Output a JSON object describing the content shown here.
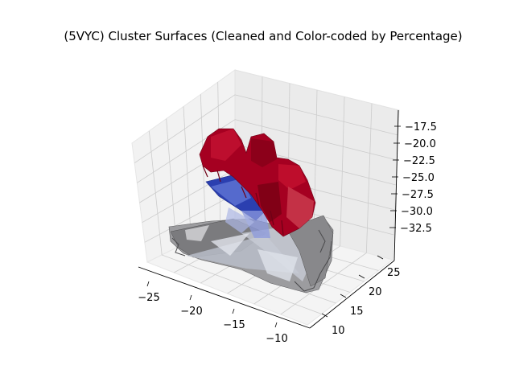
{
  "chart_data": {
    "type": "surface3d",
    "title": "(5VYC) Cluster Surfaces (Cleaned and Color-coded by Percentage)",
    "xlabel": "",
    "ylabel": "",
    "zlabel": "",
    "x_ticks": [
      "−25",
      "−20",
      "−15",
      "−10"
    ],
    "y_ticks": [
      "10",
      "15",
      "20",
      "25"
    ],
    "z_ticks": [
      "−17.5",
      "−20.0",
      "−22.5",
      "−25.0",
      "−27.5",
      "−30.0",
      "−32.5"
    ],
    "xlim": [
      -27,
      -8
    ],
    "ylim": [
      8,
      27
    ],
    "zlim": [
      -33.5,
      -16
    ],
    "grid": true,
    "surfaces": [
      {
        "color": "#a50021",
        "approx_x_range": [
          -27,
          -12
        ],
        "approx_y_range": [
          12,
          26
        ],
        "approx_z_range": [
          -31,
          -19
        ]
      },
      {
        "color": "#2b3fb0",
        "approx_x_range": [
          -25,
          -17
        ],
        "approx_y_range": [
          14,
          24
        ],
        "approx_z_range": [
          -29,
          -25
        ]
      },
      {
        "color": "#9a9a9c",
        "approx_x_range": [
          -27,
          -10
        ],
        "approx_y_range": [
          9,
          26
        ],
        "approx_z_range": [
          -33,
          -29
        ]
      }
    ],
    "colors": {
      "pane": "#f2f2f2",
      "grid": "#cccccc",
      "red": "#a50021",
      "blue": "#2b3fb0",
      "gray": "#9a9a9c"
    }
  }
}
